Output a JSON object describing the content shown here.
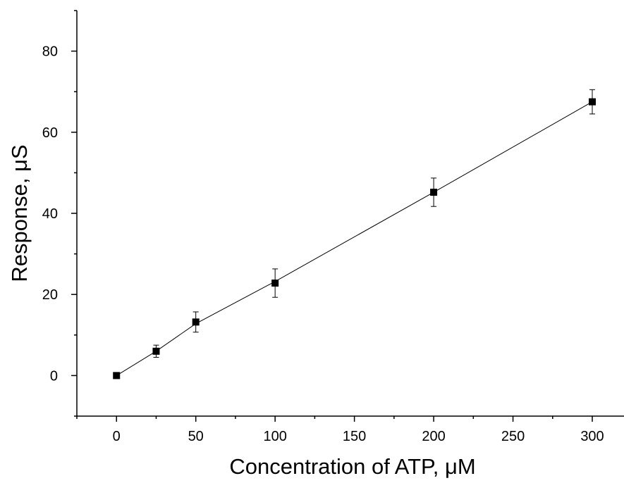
{
  "chart_data": {
    "type": "scatter",
    "title": "",
    "xlabel": "Concentration of ATP, μM",
    "ylabel": "Response, μS",
    "xlim": [
      -25,
      320
    ],
    "ylim": [
      -10,
      90
    ],
    "xticks": [
      0,
      50,
      100,
      150,
      200,
      250,
      300
    ],
    "yticks": [
      0,
      20,
      40,
      60,
      80
    ],
    "grid": false,
    "legend": "none",
    "series": [
      {
        "x": [
          0,
          25,
          50,
          100,
          200,
          300
        ],
        "y": [
          0,
          6,
          13.2,
          22.8,
          45.2,
          67.5
        ],
        "error": [
          0.3,
          1.5,
          2.5,
          3.5,
          3.5,
          3.0
        ],
        "marker": "square",
        "color": "#000000"
      }
    ],
    "fit_line": {
      "x": [
        0,
        25,
        50,
        100,
        200,
        300
      ],
      "y": [
        0,
        6,
        12.8,
        23.2,
        45.2,
        67.5
      ],
      "color": "#000000"
    }
  }
}
